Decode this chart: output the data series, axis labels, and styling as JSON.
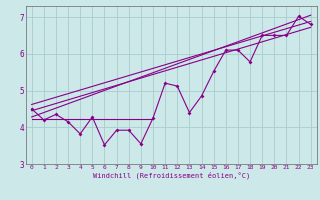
{
  "xlabel": "Windchill (Refroidissement éolien,°C)",
  "background_color": "#cce8e8",
  "grid_color": "#aacccc",
  "line_color": "#880088",
  "x_data": [
    0,
    1,
    2,
    3,
    4,
    5,
    6,
    7,
    8,
    9,
    10,
    11,
    12,
    13,
    14,
    15,
    16,
    17,
    18,
    19,
    20,
    21,
    22,
    23
  ],
  "y_scatter": [
    4.5,
    4.2,
    4.35,
    4.15,
    3.82,
    4.28,
    3.52,
    3.92,
    3.92,
    3.55,
    4.25,
    5.2,
    5.12,
    4.4,
    4.85,
    5.52,
    6.1,
    6.1,
    5.78,
    6.5,
    6.5,
    6.5,
    7.02,
    6.8
  ],
  "flat_line_x": [
    0,
    10
  ],
  "flat_line_y": [
    4.22,
    4.22
  ],
  "regression_lines": [
    {
      "x": [
        0,
        23
      ],
      "y": [
        4.45,
        6.72
      ]
    },
    {
      "x": [
        0,
        23
      ],
      "y": [
        4.62,
        6.88
      ]
    },
    {
      "x": [
        0,
        23
      ],
      "y": [
        4.28,
        7.05
      ]
    }
  ],
  "xlim": [
    -0.5,
    23.5
  ],
  "ylim": [
    3.0,
    7.3
  ],
  "yticks": [
    3,
    4,
    5,
    6,
    7
  ],
  "xticks": [
    0,
    1,
    2,
    3,
    4,
    5,
    6,
    7,
    8,
    9,
    10,
    11,
    12,
    13,
    14,
    15,
    16,
    17,
    18,
    19,
    20,
    21,
    22,
    23
  ]
}
